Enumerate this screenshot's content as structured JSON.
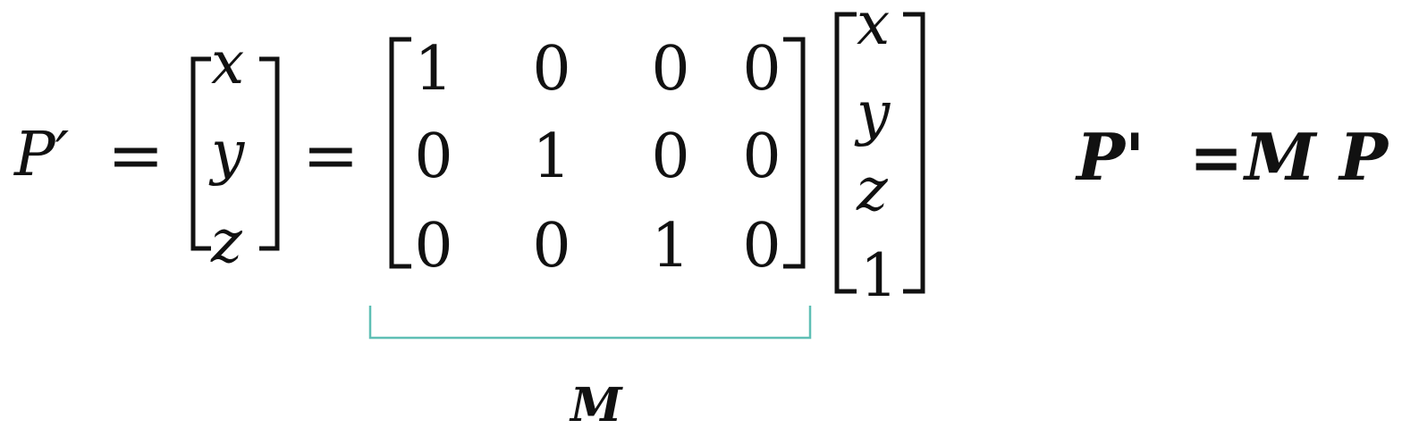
{
  "equation": {
    "lhs": "P′",
    "equals": "=",
    "vector_p": [
      "x",
      "y",
      "z"
    ],
    "matrix": [
      [
        "1",
        "0",
        "0",
        "0"
      ],
      [
        "0",
        "1",
        "0",
        "0"
      ],
      [
        "0",
        "0",
        "1",
        "0"
      ]
    ],
    "homogeneous_vector": [
      "x",
      "y",
      "z",
      "1"
    ],
    "brace_label": "M"
  },
  "compact_form": {
    "p_prime": "P'",
    "equals": "=",
    "m": "M",
    "p": "P"
  },
  "colors": {
    "text": "#111111",
    "brace": "#5fbfb5",
    "background": "#ffffff"
  }
}
